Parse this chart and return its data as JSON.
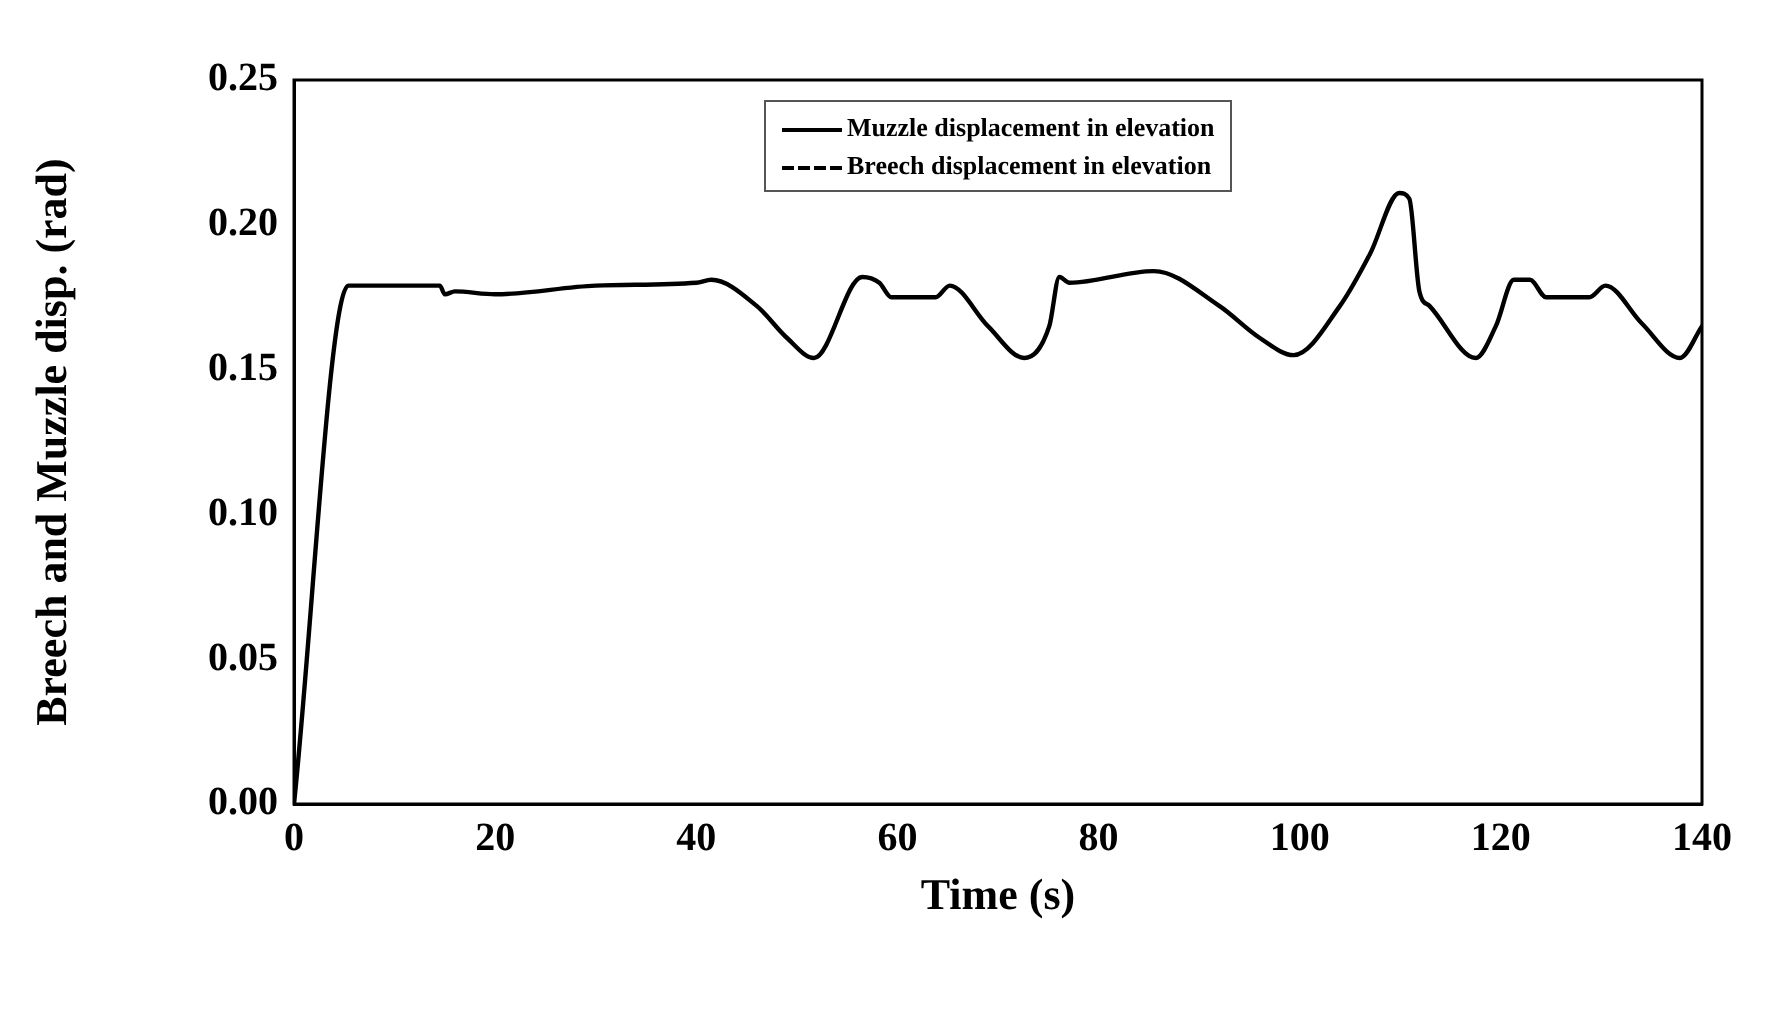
{
  "chart_data": {
    "type": "line",
    "xlabel": "Time (s)",
    "ylabel": "Breech and Muzzle disp. (rad)",
    "x": [
      0,
      5.4,
      14.5,
      15,
      16,
      20,
      30,
      40,
      41.5,
      46,
      49,
      51.7,
      56.5,
      58.2,
      59.4,
      63.8,
      65.2,
      69,
      72.6,
      75.1,
      76.1,
      77.1,
      85.5,
      92,
      96,
      99.4,
      104,
      107,
      109.9,
      110.9,
      111.9,
      112.9,
      117.5,
      119.5,
      121.3,
      122.9,
      124.5,
      128.8,
      130.4,
      134,
      137.8,
      140
    ],
    "series": [
      {
        "name": "Muzzle displacement in elevation",
        "color": "#000000",
        "line_style": "solid",
        "values": [
          0,
          0.179,
          0.179,
          0.176,
          0.177,
          0.176,
          0.179,
          0.18,
          0.181,
          0.172,
          0.161,
          0.154,
          0.182,
          0.18,
          0.175,
          0.175,
          0.179,
          0.165,
          0.154,
          0.165,
          0.182,
          0.18,
          0.184,
          0.172,
          0.161,
          0.155,
          0.172,
          0.19,
          0.211,
          0.209,
          0.177,
          0.172,
          0.154,
          0.165,
          0.181,
          0.181,
          0.175,
          0.175,
          0.179,
          0.166,
          0.154,
          0.165
        ]
      },
      {
        "name": "Breech displacement in elevation",
        "color": "#000000",
        "line_style": "dashed",
        "values": [
          null,
          null,
          null,
          null,
          null,
          null,
          null,
          null,
          null,
          null,
          null,
          null,
          null,
          null,
          null,
          null,
          null,
          null,
          null,
          null,
          null,
          null,
          null,
          null,
          null,
          null,
          null,
          null,
          null,
          null,
          null,
          null,
          null,
          null,
          null,
          null,
          null,
          null,
          null,
          null,
          null,
          null
        ]
      }
    ],
    "xlim": [
      0,
      140
    ],
    "xticks": [
      0,
      20,
      40,
      60,
      80,
      100,
      120,
      140
    ],
    "ylim": [
      0,
      0.25
    ],
    "yticks": [
      {
        "value": 0,
        "label": "0.00"
      },
      {
        "value": 0.05,
        "label": "0.05"
      },
      {
        "value": 0.1,
        "label": "0.10"
      },
      {
        "value": 0.15,
        "label": "0.15"
      },
      {
        "value": 0.2,
        "label": "0.20"
      },
      {
        "value": 0.25,
        "label": "0.25"
      }
    ],
    "grid": false,
    "legend": "top",
    "marker": "none"
  }
}
